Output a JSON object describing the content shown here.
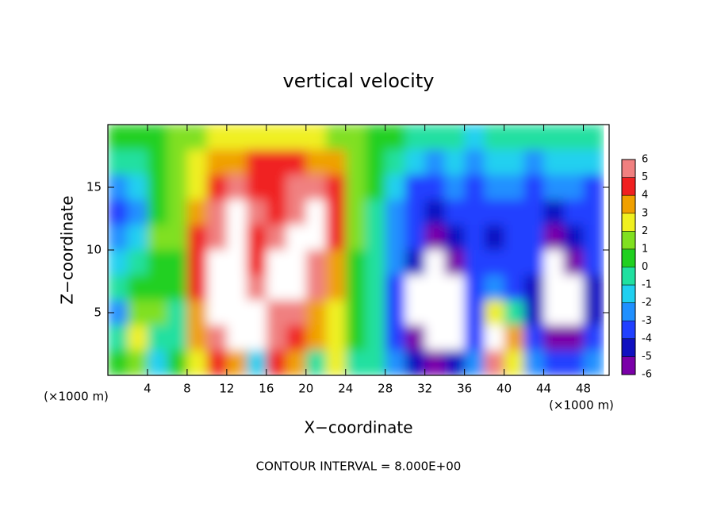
{
  "chart_data": {
    "type": "heatmap",
    "title": "vertical velocity",
    "x_label": "X−coordinate",
    "y_label": "Z−coordinate",
    "x_unit_left": "(×1000 m)",
    "x_unit_right": "(×1000 m)",
    "annotation": "CONTOUR INTERVAL = 8.000E+00",
    "xlim": [
      0,
      50.6
    ],
    "ylim": [
      0,
      20
    ],
    "xticks": [
      4,
      8,
      12,
      16,
      20,
      24,
      28,
      32,
      36,
      40,
      44,
      48
    ],
    "yticks": [
      5,
      10,
      15
    ],
    "x": [
      1,
      3,
      5,
      7,
      9,
      11,
      13,
      15,
      17,
      19,
      21,
      23,
      25,
      27,
      29,
      31,
      33,
      35,
      37,
      39,
      41,
      43,
      45,
      47,
      49
    ],
    "z": [
      19,
      17,
      15,
      13,
      11,
      9,
      7,
      5,
      3,
      1
    ],
    "values": [
      [
        0.5,
        0.5,
        0.8,
        1,
        1.5,
        2,
        2.5,
        2.5,
        2.5,
        2.5,
        2,
        1.5,
        1,
        0.5,
        0,
        -0.5,
        -1,
        -1,
        -1.5,
        -1,
        -1,
        -1,
        -1,
        -1,
        -1
      ],
      [
        -1,
        -0.5,
        0.5,
        1,
        2,
        3,
        3.5,
        4,
        4,
        4,
        3.5,
        3,
        1,
        0.5,
        -0.5,
        -2,
        -3,
        -2,
        -2.5,
        -2,
        -2,
        -3,
        -2,
        -2,
        -2
      ],
      [
        -3,
        -2,
        0.5,
        1,
        2.5,
        4,
        5,
        4,
        4,
        5,
        5,
        4,
        1,
        0,
        -2,
        -4,
        -4,
        -3,
        -3.5,
        -3,
        -3,
        -4,
        -3,
        -3,
        -4
      ],
      [
        -4,
        -3,
        0.5,
        1,
        3,
        5,
        7,
        5,
        4,
        6,
        7,
        4.5,
        1,
        -0.5,
        -3,
        -4,
        -5,
        -4,
        -4,
        -4,
        -3.5,
        -4,
        -5,
        -4,
        -4
      ],
      [
        -3,
        -2,
        1,
        1.5,
        4,
        6,
        7,
        4,
        5,
        7,
        7,
        4,
        1,
        -1,
        -3,
        -4,
        -6,
        -5,
        -4,
        -4.5,
        -4,
        -4,
        -6,
        -5,
        -4
      ],
      [
        -2,
        -1,
        0.5,
        0.5,
        4,
        7,
        7,
        4,
        7,
        8,
        6,
        3.5,
        0.5,
        -1,
        -3,
        -5,
        -8,
        -6,
        -4,
        -4,
        -4,
        -4,
        -7,
        -6,
        -4
      ],
      [
        -1,
        0.5,
        0.5,
        0,
        4,
        7,
        7,
        6,
        8,
        7,
        5,
        3,
        0,
        -1,
        -4,
        -7,
        -8,
        -7,
        -4,
        -3,
        -4,
        -5,
        -7,
        -7,
        -5
      ],
      [
        -3,
        1.5,
        1,
        -0.5,
        3.5,
        7,
        7,
        8,
        6,
        6,
        3,
        2,
        0,
        -1,
        -4,
        -7,
        -8,
        -7,
        -4,
        2,
        -1,
        -5,
        -7,
        -8,
        -5
      ],
      [
        -1,
        2,
        -0.5,
        -0.5,
        3,
        6,
        7,
        7,
        5,
        4,
        3,
        2,
        0,
        -1,
        -4,
        -6,
        -8,
        -7,
        -4,
        7,
        3,
        -4,
        -6,
        -6,
        -4
      ],
      [
        0.5,
        1,
        -2,
        0,
        2,
        4,
        3,
        -2,
        4,
        3,
        -1,
        2,
        -1,
        -1,
        -3,
        -5,
        -6,
        -5,
        -3,
        5,
        2,
        -3,
        -4,
        -4,
        -3
      ]
    ],
    "colorbar_ticks": [
      -6,
      -5,
      -4,
      -3,
      -2,
      -1,
      0,
      1,
      2,
      3,
      4,
      5,
      6
    ],
    "colorscale": [
      "#7a00a8",
      "#1010c0",
      "#2040ff",
      "#2090ff",
      "#20d0f0",
      "#20e0a0",
      "#20d020",
      "#80e020",
      "#f0f020",
      "#f0a000",
      "#f02020",
      "#f08080"
    ],
    "out_of_range_color": "#ffffff"
  }
}
